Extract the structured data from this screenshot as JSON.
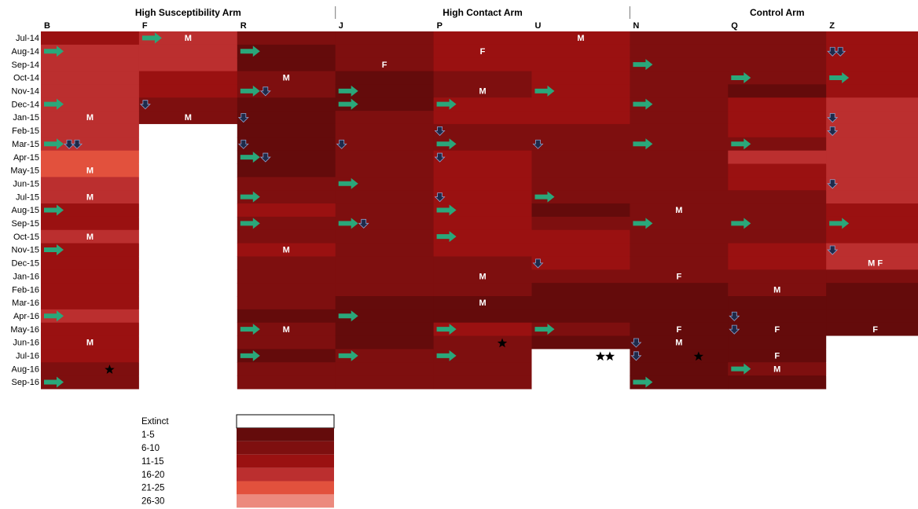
{
  "chart_data": {
    "type": "heatmap",
    "title": "",
    "arms": [
      {
        "name": "High Susceptibility Arm",
        "columns": [
          "B",
          "F",
          "R"
        ]
      },
      {
        "name": "High Contact Arm",
        "columns": [
          "J",
          "P",
          "U"
        ]
      },
      {
        "name": "Control Arm",
        "columns": [
          "N",
          "Q",
          "Z"
        ]
      }
    ],
    "columns": [
      "B",
      "F",
      "R",
      "J",
      "P",
      "U",
      "N",
      "Q",
      "Z"
    ],
    "months": [
      "Jul-14",
      "Aug-14",
      "Sep-14",
      "Oct-14",
      "Nov-14",
      "Dec-14",
      "Jan-15",
      "Feb-15",
      "Mar-15",
      "Apr-15",
      "May-15",
      "Jun-15",
      "Jul-15",
      "Aug-15",
      "Sep-15",
      "Oct-15",
      "Nov-15",
      "Dec-15",
      "Jan-16",
      "Feb-16",
      "Mar-16",
      "Apr-16",
      "May-16",
      "Jun-16",
      "Jul-16",
      "Aug-16",
      "Sep-16"
    ],
    "legend": {
      "title": "",
      "categories": [
        {
          "label": "Extinct",
          "color": "#ffffff"
        },
        {
          "label": "1-5",
          "color": "#640b0b"
        },
        {
          "label": "6-10",
          "color": "#7e0f0f"
        },
        {
          "label": "11-15",
          "color": "#9a1111"
        },
        {
          "label": "16-20",
          "color": "#bb2f2f"
        },
        {
          "label": "21-25",
          "color": "#e2513d"
        },
        {
          "label": "26-30",
          "color": "#ec8a7e"
        }
      ]
    },
    "values": {
      "B": [
        3,
        4,
        4,
        4,
        4,
        4,
        4,
        4,
        4,
        5,
        5,
        4,
        4,
        3,
        3,
        4,
        3,
        3,
        3,
        3,
        3,
        4,
        3,
        3,
        3,
        2,
        2
      ],
      "F": [
        4,
        4,
        4,
        3,
        3,
        2,
        2,
        0,
        0,
        0,
        0,
        0,
        0,
        0,
        0,
        0,
        0,
        0,
        0,
        0,
        0,
        0,
        0,
        0,
        0,
        0,
        0
      ],
      "R": [
        2,
        1,
        1,
        2,
        2,
        1,
        1,
        1,
        1,
        1,
        1,
        2,
        2,
        3,
        2,
        2,
        3,
        2,
        2,
        2,
        2,
        1,
        2,
        2,
        1,
        2,
        2
      ],
      "J": [
        2,
        2,
        2,
        1,
        1,
        1,
        2,
        2,
        2,
        2,
        2,
        2,
        2,
        2,
        2,
        2,
        2,
        2,
        2,
        2,
        1,
        1,
        1,
        1,
        2,
        2,
        2
      ],
      "P": [
        3,
        3,
        3,
        2,
        2,
        3,
        3,
        2,
        2,
        3,
        3,
        3,
        3,
        3,
        3,
        3,
        3,
        2,
        2,
        2,
        1,
        1,
        3,
        2,
        2,
        2,
        2
      ],
      "U": [
        3,
        3,
        3,
        3,
        3,
        3,
        3,
        2,
        2,
        2,
        2,
        2,
        2,
        1,
        2,
        3,
        3,
        3,
        2,
        1,
        1,
        1,
        2,
        1,
        0,
        0,
        0
      ],
      "N": [
        2,
        2,
        2,
        2,
        2,
        2,
        2,
        2,
        2,
        2,
        2,
        2,
        2,
        2,
        2,
        2,
        2,
        2,
        2,
        1,
        1,
        1,
        1,
        1,
        1,
        1,
        1
      ],
      "Q": [
        2,
        2,
        2,
        2,
        1,
        3,
        3,
        3,
        2,
        4,
        3,
        3,
        2,
        2,
        2,
        2,
        3,
        3,
        2,
        2,
        1,
        1,
        1,
        1,
        1,
        2,
        1
      ],
      "Z": [
        3,
        3,
        3,
        3,
        3,
        4,
        4,
        4,
        4,
        4,
        4,
        4,
        4,
        3,
        3,
        3,
        4,
        4,
        2,
        1,
        1,
        1,
        1,
        0,
        0,
        0,
        0
      ]
    },
    "annotations": {
      "sex_labels": [
        {
          "col": "B",
          "row": "Jan-15",
          "text": "M"
        },
        {
          "col": "B",
          "row": "May-15",
          "text": "M"
        },
        {
          "col": "B",
          "row": "Jul-15",
          "text": "M"
        },
        {
          "col": "B",
          "row": "Oct-15",
          "text": "M"
        },
        {
          "col": "B",
          "row": "Jun-16",
          "text": "M"
        },
        {
          "col": "F",
          "row": "Jul-14",
          "text": "M"
        },
        {
          "col": "F",
          "row": "Jan-15",
          "text": "M"
        },
        {
          "col": "R",
          "row": "Oct-14",
          "text": "M"
        },
        {
          "col": "R",
          "row": "Nov-15",
          "text": "M"
        },
        {
          "col": "R",
          "row": "May-16",
          "text": "M"
        },
        {
          "col": "J",
          "row": "Sep-14",
          "text": "F"
        },
        {
          "col": "P",
          "row": "Aug-14",
          "text": "F"
        },
        {
          "col": "P",
          "row": "Nov-14",
          "text": "M"
        },
        {
          "col": "P",
          "row": "Jan-16",
          "text": "M"
        },
        {
          "col": "P",
          "row": "Mar-16",
          "text": "M"
        },
        {
          "col": "U",
          "row": "Jul-14",
          "text": "M"
        },
        {
          "col": "N",
          "row": "Aug-15",
          "text": "M"
        },
        {
          "col": "N",
          "row": "Jan-16",
          "text": "F"
        },
        {
          "col": "N",
          "row": "May-16",
          "text": "F"
        },
        {
          "col": "N",
          "row": "Jun-16",
          "text": "M"
        },
        {
          "col": "Q",
          "row": "Feb-16",
          "text": "M"
        },
        {
          "col": "Q",
          "row": "May-16",
          "text": "F"
        },
        {
          "col": "Q",
          "row": "Jul-16",
          "text": "F"
        },
        {
          "col": "Q",
          "row": "Aug-16",
          "text": "M"
        },
        {
          "col": "Z",
          "row": "Dec-15",
          "text": "M F"
        },
        {
          "col": "Z",
          "row": "May-16",
          "text": "F"
        }
      ],
      "arrivals_right_arrow": [
        {
          "col": "B",
          "rows": [
            "Aug-14",
            "Dec-14",
            "Mar-15",
            "Aug-15",
            "Nov-15",
            "Apr-16",
            "Sep-16"
          ]
        },
        {
          "col": "F",
          "rows": [
            "Jul-14"
          ]
        },
        {
          "col": "R",
          "rows": [
            "Aug-14",
            "Nov-14",
            "Apr-15",
            "Jul-15",
            "Sep-15",
            "May-16",
            "Jul-16"
          ]
        },
        {
          "col": "J",
          "rows": [
            "Nov-14",
            "Dec-14",
            "Jun-15",
            "Sep-15",
            "Apr-16",
            "Jul-16"
          ]
        },
        {
          "col": "P",
          "rows": [
            "Dec-14",
            "Mar-15",
            "Aug-15",
            "Oct-15",
            "May-16",
            "Jul-16"
          ]
        },
        {
          "col": "U",
          "rows": [
            "Nov-14",
            "Jul-15",
            "May-16"
          ]
        },
        {
          "col": "N",
          "rows": [
            "Sep-14",
            "Dec-14",
            "Mar-15",
            "Sep-15",
            "Sep-16"
          ]
        },
        {
          "col": "Q",
          "rows": [
            "Oct-14",
            "Mar-15",
            "Sep-15",
            "Aug-16"
          ]
        },
        {
          "col": "Z",
          "rows": [
            "Oct-14",
            "Sep-15"
          ]
        }
      ],
      "departures_down_arrow": [
        {
          "col": "B",
          "rows": [
            "Mar-15",
            "Mar-15"
          ]
        },
        {
          "col": "F",
          "rows": [
            "Dec-14"
          ]
        },
        {
          "col": "R",
          "rows": [
            "Nov-14",
            "Jan-15",
            "Mar-15",
            "Apr-15"
          ]
        },
        {
          "col": "J",
          "rows": [
            "Mar-15",
            "Sep-15"
          ]
        },
        {
          "col": "P",
          "rows": [
            "Feb-15",
            "Apr-15",
            "Jul-15"
          ]
        },
        {
          "col": "U",
          "rows": [
            "Mar-15",
            "Dec-15"
          ]
        },
        {
          "col": "N",
          "rows": [
            "Jun-16",
            "Jul-16"
          ]
        },
        {
          "col": "Q",
          "rows": [
            "Apr-16",
            "May-16"
          ]
        },
        {
          "col": "Z",
          "rows": [
            "Aug-14",
            "Aug-14",
            "Jan-15",
            "Feb-15",
            "Jun-15",
            "Nov-15"
          ]
        }
      ],
      "deaths_star": [
        {
          "col": "B",
          "row": "Aug-16"
        },
        {
          "col": "P",
          "row": "Jun-16"
        },
        {
          "col": "U",
          "row": "Jul-16"
        },
        {
          "col": "U",
          "row": "Jul-16"
        },
        {
          "col": "N",
          "row": "Jul-16"
        }
      ]
    }
  }
}
